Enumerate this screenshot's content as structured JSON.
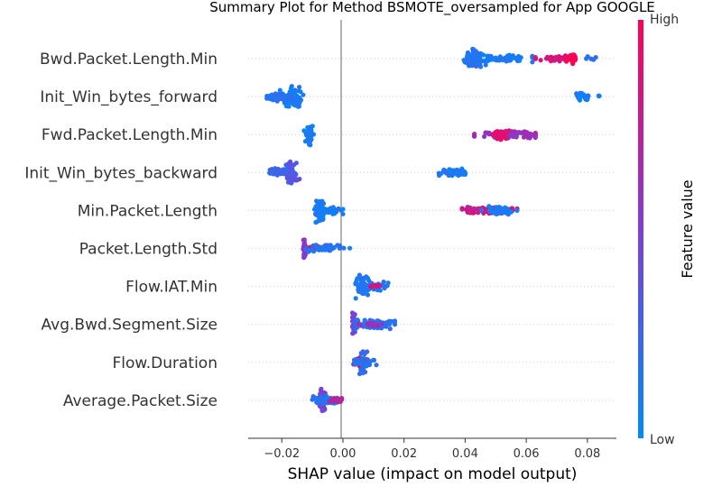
{
  "chart_data": {
    "type": "scatter",
    "title": "Summary Plot for Method BSMOTE_oversampled for App GOOGLE",
    "xlabel": "SHAP value (impact on model output)",
    "xlim": [
      -0.031,
      0.0895
    ],
    "x_ticks": [
      -0.02,
      0.0,
      0.02,
      0.04,
      0.06,
      0.08
    ],
    "x_tick_labels": [
      "−0.02",
      "0.00",
      "0.02",
      "0.04",
      "0.06",
      "0.08"
    ],
    "zero_line": 0.0,
    "colorbar": {
      "label": "Feature value",
      "high": "High",
      "low": "Low",
      "low_color": "#008afb",
      "high_color": "#ff0052"
    },
    "features": [
      {
        "name": "Bwd.Packet.Length.Min",
        "clusters": [
          {
            "center": 0.043,
            "spread": 0.0015,
            "height": 0.9,
            "n": 60,
            "color": 0.15
          },
          {
            "center": 0.05,
            "spread": 0.006,
            "height": 0.3,
            "n": 70,
            "color": 0.1,
            "min": 0.038,
            "max": 0.062
          },
          {
            "center": 0.07,
            "spread": 0.004,
            "height": 0.3,
            "n": 35,
            "color": 0.85,
            "min": 0.063,
            "max": 0.076
          },
          {
            "center": 0.075,
            "spread": 0.0008,
            "height": 0.45,
            "n": 20,
            "color": 1.0
          },
          {
            "center": 0.081,
            "spread": 0.001,
            "height": 0.2,
            "n": 6,
            "color": 0.2
          }
        ]
      },
      {
        "name": "Init_Win_bytes_forward",
        "clusters": [
          {
            "center": -0.0165,
            "spread": 0.0012,
            "height": 0.9,
            "n": 70,
            "color": 0.1
          },
          {
            "center": -0.021,
            "spread": 0.0025,
            "height": 0.35,
            "n": 45,
            "color": 0.15,
            "min": -0.026,
            "max": -0.013
          },
          {
            "center": 0.078,
            "spread": 0.0015,
            "height": 0.35,
            "n": 25,
            "color": 0.1
          },
          {
            "center": 0.084,
            "spread": 0.0005,
            "height": 0.1,
            "n": 3,
            "color": 0.1
          }
        ]
      },
      {
        "name": "Fwd.Packet.Length.Min",
        "clusters": [
          {
            "center": -0.011,
            "spread": 0.0006,
            "height": 0.95,
            "n": 50,
            "color": 0.1
          },
          {
            "center": 0.0535,
            "spread": 0.006,
            "height": 0.3,
            "n": 90,
            "color": 0.6,
            "min": 0.043,
            "max": 0.063
          },
          {
            "center": 0.051,
            "spread": 0.002,
            "height": 0.45,
            "n": 25,
            "color": 0.9
          }
        ]
      },
      {
        "name": "Init_Win_bytes_backward",
        "clusters": [
          {
            "center": -0.017,
            "spread": 0.001,
            "height": 0.95,
            "n": 60,
            "color": 0.35
          },
          {
            "center": -0.021,
            "spread": 0.002,
            "height": 0.35,
            "n": 45,
            "color": 0.25,
            "min": -0.024,
            "max": -0.014
          },
          {
            "center": 0.036,
            "spread": 0.0025,
            "height": 0.35,
            "n": 45,
            "color": 0.1,
            "min": 0.031,
            "max": 0.04
          }
        ]
      },
      {
        "name": "Min.Packet.Length",
        "clusters": [
          {
            "center": -0.0075,
            "spread": 0.0008,
            "height": 0.95,
            "n": 60,
            "color": 0.1
          },
          {
            "center": -0.005,
            "spread": 0.0025,
            "height": 0.3,
            "n": 45,
            "color": 0.1,
            "min": -0.009,
            "max": 0.0
          },
          {
            "center": 0.048,
            "spread": 0.0045,
            "height": 0.3,
            "n": 90,
            "color": 0.8,
            "min": 0.039,
            "max": 0.057
          },
          {
            "center": 0.052,
            "spread": 0.002,
            "height": 0.35,
            "n": 40,
            "color": 0.1
          }
        ]
      },
      {
        "name": "Packet.Length.Std",
        "clusters": [
          {
            "center": -0.0125,
            "spread": 0.0003,
            "height": 0.95,
            "n": 30,
            "color": 0.55
          },
          {
            "center": -0.01,
            "spread": 0.0012,
            "height": 0.25,
            "n": 30,
            "color": 0.85
          },
          {
            "center": -0.005,
            "spread": 0.0035,
            "height": 0.3,
            "n": 50,
            "color": 0.15,
            "min": -0.012,
            "max": 0.003
          }
        ]
      },
      {
        "name": "Flow.IAT.Min",
        "clusters": [
          {
            "center": 0.0065,
            "spread": 0.0009,
            "height": 0.95,
            "n": 60,
            "color": 0.1
          },
          {
            "center": 0.01,
            "spread": 0.0025,
            "height": 0.35,
            "n": 40,
            "color": 0.15,
            "min": 0.005,
            "max": 0.017
          },
          {
            "center": 0.0105,
            "spread": 0.001,
            "height": 0.2,
            "n": 10,
            "color": 0.8
          }
        ]
      },
      {
        "name": "Avg.Bwd.Segment.Size",
        "clusters": [
          {
            "center": 0.0035,
            "spread": 0.0003,
            "height": 0.95,
            "n": 30,
            "color": 0.45
          },
          {
            "center": 0.01,
            "spread": 0.0035,
            "height": 0.35,
            "n": 80,
            "color": 0.15,
            "min": 0.004,
            "max": 0.017
          },
          {
            "center": 0.0085,
            "spread": 0.0015,
            "height": 0.2,
            "n": 15,
            "color": 0.6
          }
        ]
      },
      {
        "name": "Flow.Duration",
        "clusters": [
          {
            "center": 0.0065,
            "spread": 0.0006,
            "height": 0.95,
            "n": 50,
            "color": 0.2
          },
          {
            "center": 0.0055,
            "spread": 0.0012,
            "height": 0.4,
            "n": 35,
            "color": 0.95
          },
          {
            "center": 0.007,
            "spread": 0.002,
            "height": 0.3,
            "n": 30,
            "color": 0.15,
            "min": 0.003,
            "max": 0.011
          }
        ]
      },
      {
        "name": "Average.Packet.Size",
        "clusters": [
          {
            "center": -0.0065,
            "spread": 0.0006,
            "height": 0.95,
            "n": 50,
            "color": 0.5
          },
          {
            "center": -0.0055,
            "spread": 0.002,
            "height": 0.35,
            "n": 50,
            "color": 0.15,
            "min": -0.01,
            "max": -0.001
          },
          {
            "center": -0.002,
            "spread": 0.0015,
            "height": 0.25,
            "n": 20,
            "color": 0.7
          }
        ]
      }
    ]
  }
}
